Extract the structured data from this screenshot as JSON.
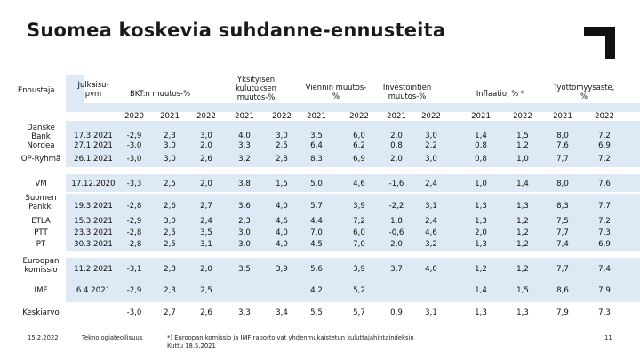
{
  "title": "Suomea koskevia suhdanne-ennusteita",
  "logo": {
    "icon": "corner-bracket-logo-icon",
    "color": "#111111"
  },
  "band_color": "#dde9f4",
  "headers": {
    "ennustaja": "Ennustaja",
    "julkaisu_1": "Julkaisu-",
    "julkaisu_2": "pvm",
    "bkt": "BKT:n muutos-%",
    "yksityisen_1": "Yksityisen",
    "yksityisen_2": "kulutuksen",
    "yksityisen_3": "muutos-%",
    "viennin_1": "Viennin muutos-",
    "viennin_2": "%",
    "investointien_1": "Investointien",
    "investointien_2": "muutos-%",
    "inflaatio": "Inflaatio, % *",
    "tyollisyys_1": "Työttömyysaste,",
    "tyollisyys_2": "%"
  },
  "years": [
    "2020",
    "2021",
    "2022",
    "2021",
    "2022",
    "2021",
    "2022",
    "2021",
    "2022",
    "2021",
    "2022",
    "2021",
    "2022"
  ],
  "rows": [
    {
      "name": "Danske Bank",
      "name_lines": [
        "Danske",
        "Bank"
      ],
      "date": "17.3.2021",
      "values": [
        "-2,9",
        "2,3",
        "3,0",
        "4,0",
        "3,0",
        "3,5",
        "6,0",
        "2,0",
        "3,0",
        "1,4",
        "1,5",
        "8,0",
        "7,2"
      ]
    },
    {
      "name": "Nordea",
      "name_lines": [
        "Nordea"
      ],
      "date": "27.1.2021",
      "values": [
        "-3,0",
        "3,0",
        "2,0",
        "3,3",
        "2,5",
        "6,4",
        "6,2",
        "0,8",
        "2,2",
        "0,8",
        "1,2",
        "7,6",
        "6,9"
      ]
    },
    {
      "name": "OP-Ryhmä",
      "name_lines": [
        "OP-Ryhmä"
      ],
      "date": "26.1.2021",
      "values": [
        "-3,0",
        "3,0",
        "2,6",
        "3,2",
        "2,8",
        "8,3",
        "6,9",
        "2,0",
        "3,0",
        "0,8",
        "1,0",
        "7,7",
        "7,2"
      ]
    },
    {
      "name": "VM",
      "name_lines": [
        "VM"
      ],
      "date": "17.12.2020",
      "values": [
        "-3,3",
        "2,5",
        "2,0",
        "3,8",
        "1,5",
        "5,0",
        "4,6",
        "-1,6",
        "2,4",
        "1,0",
        "1,4",
        "8,0",
        "7,6"
      ]
    },
    {
      "name": "Suomen Pankki",
      "name_lines": [
        "Suomen",
        "Pankki"
      ],
      "date": "19.3.2021",
      "values": [
        "-2,8",
        "2,6",
        "2,7",
        "3,6",
        "4,0",
        "5,7",
        "3,9",
        "-2,2",
        "3,1",
        "1,3",
        "1,3",
        "8,3",
        "7,7"
      ]
    },
    {
      "name": "ETLA",
      "name_lines": [
        "ETLA"
      ],
      "date": "15.3.2021",
      "values": [
        "-2,9",
        "3,0",
        "2,4",
        "2,3",
        "4,6",
        "4,4",
        "7,2",
        "1,8",
        "2,4",
        "1,3",
        "1,2",
        "7,5",
        "7,2"
      ]
    },
    {
      "name": "PTT",
      "name_lines": [
        "PTT"
      ],
      "date": "23.3.2021",
      "values": [
        "-2,8",
        "2,5",
        "3,5",
        "3,0",
        "4,0",
        "7,0",
        "6,0",
        "-0,6",
        "4,6",
        "2,0",
        "1,2",
        "7,7",
        "7,3"
      ]
    },
    {
      "name": "PT",
      "name_lines": [
        "PT"
      ],
      "date": "30.3.2021",
      "values": [
        "-2,8",
        "2,5",
        "3,1",
        "3,0",
        "4,0",
        "4,5",
        "7,0",
        "2,0",
        "3,2",
        "1,3",
        "1,2",
        "7,4",
        "6,9"
      ]
    },
    {
      "name": "Euroopan komissio",
      "name_lines": [
        "Euroopan",
        "komissio"
      ],
      "date": "11.2.2021",
      "values": [
        "-3,1",
        "2,8",
        "2,0",
        "3,5",
        "3,9",
        "5,6",
        "3,9",
        "3,7",
        "4,0",
        "1,2",
        "1,2",
        "7,7",
        "7,4"
      ]
    },
    {
      "name": "IMF",
      "name_lines": [
        "IMF"
      ],
      "date": "6.4.2021",
      "values": [
        "-2,9",
        "2,3",
        "2,5",
        "",
        "",
        "4,2",
        "5,2",
        "",
        "",
        "1,4",
        "1,5",
        "8,6",
        "7,9"
      ]
    },
    {
      "name": "Keskiarvo",
      "name_lines": [
        "Keskiarvo"
      ],
      "date": "",
      "values": [
        "-3,0",
        "2,7",
        "2,6",
        "3,3",
        "3,4",
        "5,5",
        "5,7",
        "0,9",
        "3,1",
        "1,3",
        "1,3",
        "7,9",
        "7,3"
      ]
    }
  ],
  "footer": {
    "date": "15.2.2022",
    "org": "Teknologiateollisuus",
    "note_1": "*) Euroopan komissio ja IMF raportoivat yhdenmukaistetun kuluttajahintaindeksin",
    "note_2": "Kuttu 18.5.2021",
    "page": "11"
  }
}
